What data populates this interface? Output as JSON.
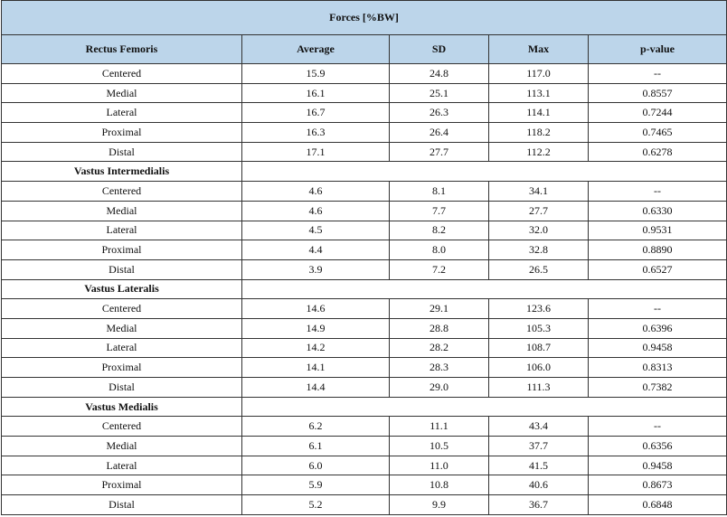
{
  "table": {
    "title": "Forces [%BW]",
    "header": [
      "Rectus Femoris",
      "Average",
      "SD",
      "Max",
      "p-value"
    ],
    "rows": [
      [
        "Centered",
        "15.9",
        "24.8",
        "117.0",
        "--"
      ],
      [
        "Medial",
        "16.1",
        "25.1",
        "113.1",
        "0.8557"
      ],
      [
        "Lateral",
        "16.7",
        "26.3",
        "114.1",
        "0.7244"
      ],
      [
        "Proximal",
        "16.3",
        "26.4",
        "118.2",
        "0.7465"
      ],
      [
        "Distal",
        "17.1",
        "27.7",
        "112.2",
        "0.6278"
      ],
      [
        "Vastus Intermedialis"
      ],
      [
        "Centered",
        "4.6",
        "8.1",
        "34.1",
        "--"
      ],
      [
        "Medial",
        "4.6",
        "7.7",
        "27.7",
        "0.6330"
      ],
      [
        "Lateral",
        "4.5",
        "8.2",
        "32.0",
        "0.9531"
      ],
      [
        "Proximal",
        "4.4",
        "8.0",
        "32.8",
        "0.8890"
      ],
      [
        "Distal",
        "3.9",
        "7.2",
        "26.5",
        "0.6527"
      ],
      [
        "Vastus Lateralis"
      ],
      [
        "Centered",
        "14.6",
        "29.1",
        "123.6",
        "--"
      ],
      [
        "Medial",
        "14.9",
        "28.8",
        "105.3",
        "0.6396"
      ],
      [
        "Lateral",
        "14.2",
        "28.2",
        "108.7",
        "0.9458"
      ],
      [
        "Proximal",
        "14.1",
        "28.3",
        "106.0",
        "0.8313"
      ],
      [
        "Distal",
        "14.4",
        "29.0",
        "111.3",
        "0.7382"
      ],
      [
        "Vastus Medialis"
      ],
      [
        "Centered",
        "6.2",
        "11.1",
        "43.4",
        "--"
      ],
      [
        "Medial",
        "6.1",
        "10.5",
        "37.7",
        "0.6356"
      ],
      [
        "Lateral",
        "6.0",
        "11.0",
        "41.5",
        "0.9458"
      ],
      [
        "Proximal",
        "5.9",
        "10.8",
        "40.6",
        "0.8673"
      ],
      [
        "Distal",
        "5.2",
        "9.9",
        "36.7",
        "0.6848"
      ]
    ]
  }
}
